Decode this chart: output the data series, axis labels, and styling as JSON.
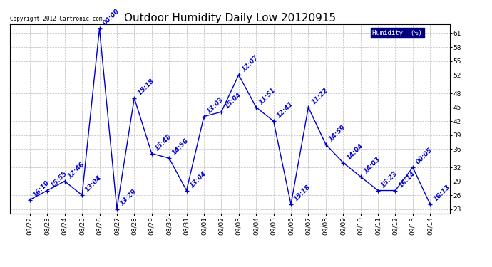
{
  "title": "Outdoor Humidity Daily Low 20120915",
  "copyright_text": "Copyright 2012 Cartronic.com",
  "legend_label": "Humidity  (%)",
  "background_color": "#ffffff",
  "plot_bg_color": "#ffffff",
  "line_color": "#0000cc",
  "label_color": "#0000cc",
  "dates": [
    "08/22",
    "08/23",
    "08/24",
    "08/25",
    "08/26",
    "08/27",
    "08/28",
    "08/29",
    "08/30",
    "08/31",
    "09/01",
    "09/02",
    "09/03",
    "09/04",
    "09/05",
    "09/06",
    "09/07",
    "09/08",
    "09/09",
    "09/10",
    "09/11",
    "09/12",
    "09/13",
    "09/14"
  ],
  "values": [
    25,
    27,
    29,
    26,
    62,
    23,
    47,
    35,
    34,
    27,
    43,
    44,
    52,
    45,
    42,
    24,
    45,
    37,
    33,
    30,
    27,
    27,
    32,
    24
  ],
  "time_labels": [
    "16:10",
    "15:55",
    "12:46",
    "13:04",
    "00:00",
    "13:29",
    "15:18",
    "15:48",
    "14:56",
    "13:04",
    "13:03",
    "15:04",
    "12:07",
    "11:51",
    "12:41",
    "15:18",
    "11:22",
    "14:59",
    "14:04",
    "14:03",
    "15:23",
    "16:14",
    "00:05",
    "16:13"
  ],
  "ylim": [
    22,
    63
  ],
  "yticks": [
    23,
    26,
    29,
    32,
    36,
    39,
    42,
    45,
    48,
    52,
    55,
    58,
    61
  ],
  "grid_color": "#bbbbbb",
  "title_fontsize": 11,
  "tick_fontsize": 6.5,
  "label_fontsize": 6.5,
  "legend_bg": "#000080",
  "legend_fg": "#ffffff",
  "border_color": "#000000"
}
